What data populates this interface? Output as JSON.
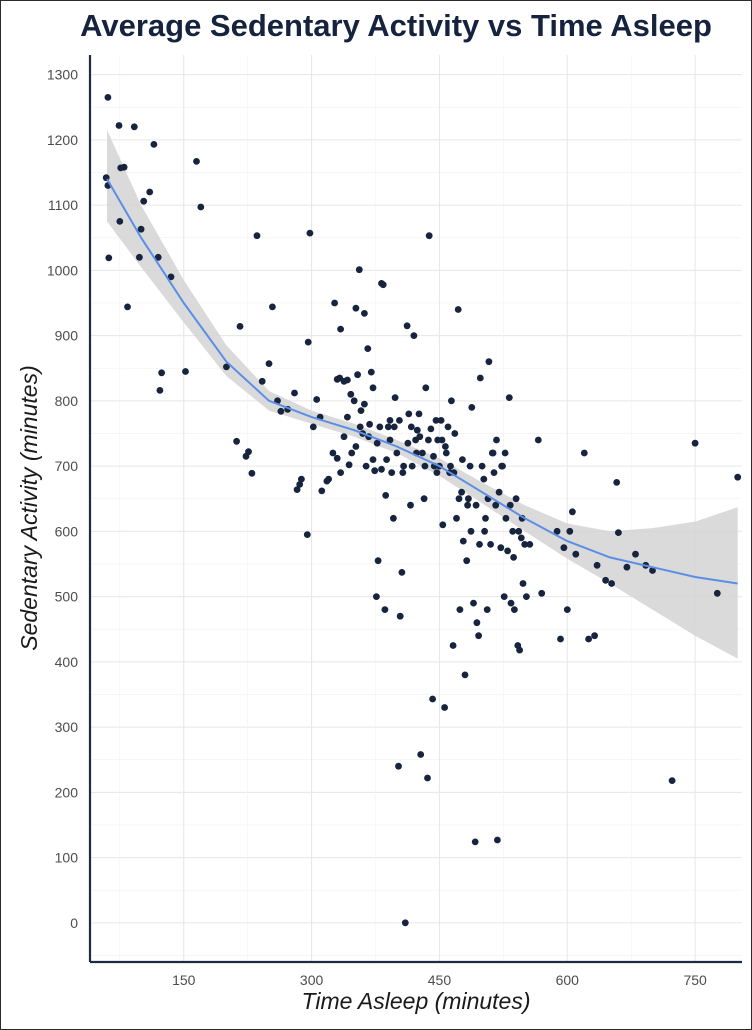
{
  "chart_data": {
    "type": "scatter",
    "title": "Average Sedentary Activity vs Time Asleep",
    "xlabel": "Time Asleep (minutes)",
    "ylabel": "Sedentary Activity (minutes)",
    "xlim": [
      40,
      805
    ],
    "ylim": [
      -60,
      1330
    ],
    "x_ticks": [
      150,
      300,
      450,
      600,
      750
    ],
    "y_ticks": [
      0,
      100,
      200,
      300,
      400,
      500,
      600,
      700,
      800,
      900,
      1000,
      1100,
      1200,
      1300
    ],
    "grid": true,
    "point_color": "#17243d",
    "smooth_color": "#5b8ee6",
    "band_color": "#d3d3d3",
    "series": [
      {
        "name": "observations",
        "points": [
          [
            61,
            1265
          ],
          [
            59,
            1142
          ],
          [
            61,
            1130
          ],
          [
            74,
            1222
          ],
          [
            76,
            1157
          ],
          [
            80,
            1158
          ],
          [
            75,
            1075
          ],
          [
            92,
            1220
          ],
          [
            62,
            1019
          ],
          [
            98,
            1020
          ],
          [
            84,
            944
          ],
          [
            100,
            1063
          ],
          [
            103,
            1106
          ],
          [
            110,
            1120
          ],
          [
            115,
            1193
          ],
          [
            120,
            1020
          ],
          [
            124,
            843
          ],
          [
            122,
            816
          ],
          [
            135,
            990
          ],
          [
            152,
            845
          ],
          [
            165,
            1167
          ],
          [
            170,
            1097
          ],
          [
            200,
            852
          ],
          [
            216,
            914
          ],
          [
            212,
            738
          ],
          [
            223,
            715
          ],
          [
            226,
            722
          ],
          [
            230,
            689
          ],
          [
            236,
            1053
          ],
          [
            242,
            830
          ],
          [
            250,
            857
          ],
          [
            254,
            944
          ],
          [
            260,
            800
          ],
          [
            264,
            784
          ],
          [
            272,
            787
          ],
          [
            280,
            812
          ],
          [
            283,
            664
          ],
          [
            286,
            672
          ],
          [
            288,
            680
          ],
          [
            296,
            890
          ],
          [
            298,
            1057
          ],
          [
            295,
            595
          ],
          [
            302,
            760
          ],
          [
            306,
            802
          ],
          [
            310,
            775
          ],
          [
            312,
            662
          ],
          [
            318,
            677
          ],
          [
            320,
            680
          ],
          [
            325,
            720
          ],
          [
            327,
            950
          ],
          [
            330,
            833
          ],
          [
            333,
            835
          ],
          [
            334,
            910
          ],
          [
            338,
            830
          ],
          [
            342,
            832
          ],
          [
            344,
            702
          ],
          [
            346,
            810
          ],
          [
            350,
            800
          ],
          [
            352,
            942
          ],
          [
            354,
            840
          ],
          [
            356,
            1001
          ],
          [
            358,
            785
          ],
          [
            360,
            750
          ],
          [
            362,
            934
          ],
          [
            364,
            700
          ],
          [
            366,
            880
          ],
          [
            368,
            764
          ],
          [
            370,
            844
          ],
          [
            372,
            820
          ],
          [
            374,
            693
          ],
          [
            376,
            500
          ],
          [
            378,
            555
          ],
          [
            380,
            760
          ],
          [
            382,
            980
          ],
          [
            384,
            978
          ],
          [
            386,
            480
          ],
          [
            388,
            710
          ],
          [
            390,
            760
          ],
          [
            392,
            740
          ],
          [
            394,
            690
          ],
          [
            396,
            620
          ],
          [
            398,
            805
          ],
          [
            400,
            720
          ],
          [
            402,
            240
          ],
          [
            404,
            470
          ],
          [
            406,
            537
          ],
          [
            408,
            700
          ],
          [
            410,
            0
          ],
          [
            412,
            915
          ],
          [
            414,
            780
          ],
          [
            416,
            640
          ],
          [
            418,
            700
          ],
          [
            420,
            900
          ],
          [
            422,
            740
          ],
          [
            424,
            755
          ],
          [
            426,
            780
          ],
          [
            428,
            258
          ],
          [
            430,
            720
          ],
          [
            432,
            650
          ],
          [
            434,
            820
          ],
          [
            436,
            222
          ],
          [
            438,
            1053
          ],
          [
            440,
            757
          ],
          [
            442,
            343
          ],
          [
            444,
            700
          ],
          [
            446,
            770
          ],
          [
            448,
            740
          ],
          [
            450,
            700
          ],
          [
            452,
            770
          ],
          [
            454,
            610
          ],
          [
            456,
            330
          ],
          [
            458,
            720
          ],
          [
            460,
            760
          ],
          [
            462,
            690
          ],
          [
            464,
            800
          ],
          [
            466,
            425
          ],
          [
            468,
            750
          ],
          [
            470,
            620
          ],
          [
            472,
            940
          ],
          [
            474,
            480
          ],
          [
            476,
            660
          ],
          [
            478,
            585
          ],
          [
            480,
            380
          ],
          [
            482,
            555
          ],
          [
            484,
            650
          ],
          [
            486,
            700
          ],
          [
            488,
            790
          ],
          [
            490,
            490
          ],
          [
            492,
            124
          ],
          [
            494,
            460
          ],
          [
            496,
            440
          ],
          [
            498,
            835
          ],
          [
            500,
            700
          ],
          [
            502,
            680
          ],
          [
            504,
            620
          ],
          [
            506,
            480
          ],
          [
            508,
            860
          ],
          [
            510,
            580
          ],
          [
            512,
            720
          ],
          [
            514,
            690
          ],
          [
            516,
            640
          ],
          [
            518,
            127
          ],
          [
            520,
            660
          ],
          [
            522,
            575
          ],
          [
            524,
            700
          ],
          [
            526,
            500
          ],
          [
            528,
            620
          ],
          [
            530,
            570
          ],
          [
            532,
            805
          ],
          [
            534,
            490
          ],
          [
            536,
            600
          ],
          [
            538,
            480
          ],
          [
            540,
            650
          ],
          [
            542,
            425
          ],
          [
            544,
            418
          ],
          [
            546,
            590
          ],
          [
            548,
            520
          ],
          [
            550,
            580
          ],
          [
            552,
            500
          ],
          [
            556,
            580
          ],
          [
            566,
            740
          ],
          [
            570,
            505
          ],
          [
            588,
            600
          ],
          [
            592,
            435
          ],
          [
            596,
            575
          ],
          [
            600,
            480
          ],
          [
            603,
            600
          ],
          [
            606,
            630
          ],
          [
            610,
            565
          ],
          [
            620,
            720
          ],
          [
            625,
            435
          ],
          [
            632,
            440
          ],
          [
            635,
            548
          ],
          [
            645,
            525
          ],
          [
            652,
            520
          ],
          [
            658,
            675
          ],
          [
            660,
            598
          ],
          [
            670,
            545
          ],
          [
            680,
            565
          ],
          [
            692,
            548
          ],
          [
            700,
            540
          ],
          [
            723,
            218
          ],
          [
            750,
            735
          ],
          [
            776,
            505
          ],
          [
            800,
            683
          ],
          [
            330,
            712
          ],
          [
            334,
            690
          ],
          [
            338,
            745
          ],
          [
            342,
            775
          ],
          [
            347,
            720
          ],
          [
            352,
            730
          ],
          [
            357,
            760
          ],
          [
            362,
            795
          ],
          [
            367,
            745
          ],
          [
            372,
            710
          ],
          [
            377,
            735
          ],
          [
            382,
            695
          ],
          [
            387,
            655
          ],
          [
            392,
            770
          ],
          [
            397,
            760
          ],
          [
            403,
            770
          ],
          [
            407,
            690
          ],
          [
            413,
            735
          ],
          [
            417,
            760
          ],
          [
            423,
            720
          ],
          [
            427,
            745
          ],
          [
            433,
            700
          ],
          [
            437,
            740
          ],
          [
            443,
            715
          ],
          [
            447,
            690
          ],
          [
            453,
            740
          ],
          [
            457,
            730
          ],
          [
            463,
            700
          ],
          [
            467,
            690
          ],
          [
            473,
            650
          ],
          [
            477,
            710
          ],
          [
            483,
            640
          ],
          [
            487,
            600
          ],
          [
            493,
            640
          ],
          [
            497,
            580
          ],
          [
            503,
            600
          ],
          [
            507,
            650
          ],
          [
            513,
            720
          ],
          [
            517,
            740
          ],
          [
            523,
            700
          ],
          [
            527,
            720
          ],
          [
            533,
            640
          ],
          [
            537,
            560
          ],
          [
            543,
            600
          ],
          [
            547,
            620
          ]
        ]
      }
    ],
    "smooth_fit": {
      "method": "loess",
      "x": [
        60,
        100,
        150,
        200,
        250,
        300,
        350,
        400,
        450,
        500,
        550,
        600,
        650,
        700,
        750,
        800
      ],
      "y": [
        1140,
        1050,
        950,
        860,
        800,
        775,
        755,
        730,
        700,
        660,
        620,
        585,
        560,
        545,
        530,
        520
      ],
      "lower": [
        1075,
        1005,
        920,
        838,
        785,
        765,
        745,
        720,
        685,
        643,
        600,
        558,
        520,
        480,
        440,
        405
      ],
      "upper": [
        1215,
        1100,
        985,
        885,
        815,
        785,
        765,
        740,
        712,
        675,
        640,
        612,
        600,
        605,
        615,
        637
      ]
    }
  }
}
